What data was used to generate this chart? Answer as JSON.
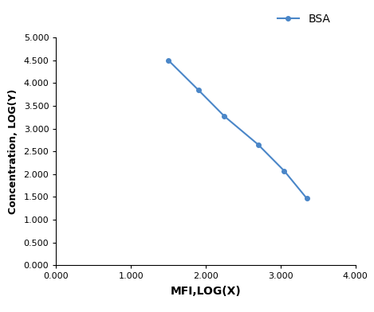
{
  "x": [
    1.5,
    1.9,
    2.25,
    2.7,
    3.05,
    3.35
  ],
  "y": [
    4.5,
    3.85,
    3.27,
    2.65,
    2.07,
    1.47
  ],
  "line_color": "#4a86c8",
  "marker": "o",
  "marker_size": 4,
  "line_width": 1.5,
  "legend_label": "BSA",
  "xlabel": "MFI,LOG(X)",
  "ylabel": "Concentration, LOG(Y)",
  "xlim": [
    0.0,
    4.0
  ],
  "ylim": [
    0.0,
    5.0
  ],
  "xticks": [
    0.0,
    1.0,
    2.0,
    3.0,
    4.0
  ],
  "yticks": [
    0.0,
    0.5,
    1.0,
    1.5,
    2.0,
    2.5,
    3.0,
    3.5,
    4.0,
    4.5,
    5.0
  ],
  "xlabel_fontsize": 10,
  "ylabel_fontsize": 9,
  "legend_fontsize": 10,
  "tick_fontsize": 8,
  "background_color": "#ffffff"
}
